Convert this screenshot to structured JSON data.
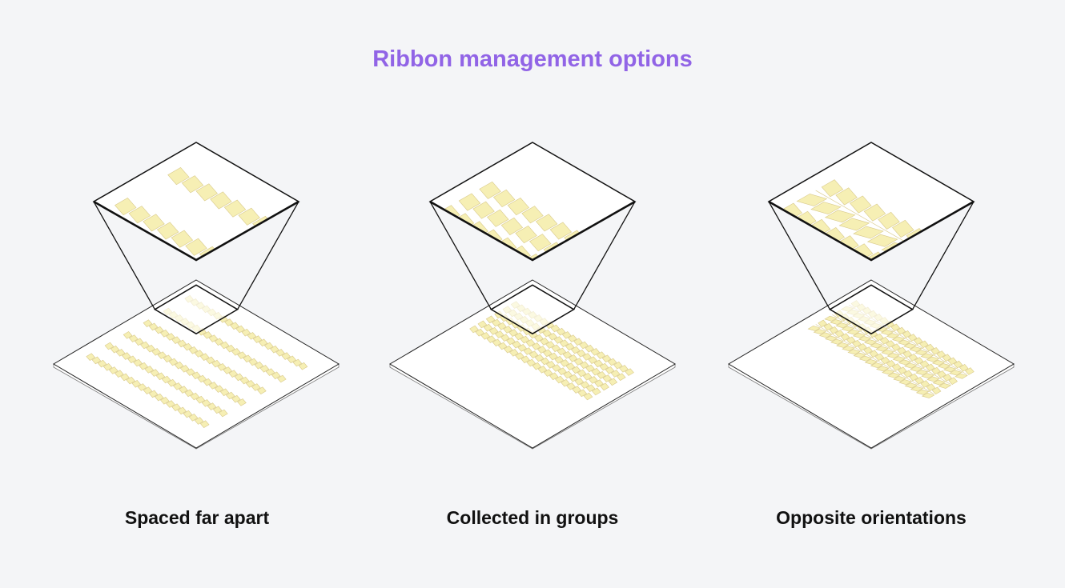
{
  "title": "Ribbon management options",
  "colors": {
    "title": "#9164e6",
    "tile_fill": "#f6efb4",
    "tile_stroke": "#d8c98a",
    "background": "#f4f5f7"
  },
  "panels": [
    {
      "label": "Spaced far apart",
      "layout": "spaced",
      "rows": [
        0.12,
        0.27,
        0.41,
        0.55,
        0.68,
        0.81
      ],
      "opposite": false
    },
    {
      "label": "Collected in groups",
      "layout": "grouped",
      "rows": [
        0.19,
        0.248,
        0.306,
        0.364,
        0.422,
        0.48
      ],
      "opposite": false
    },
    {
      "label": "Opposite orientations",
      "layout": "opposite",
      "rows": [
        0.18,
        0.238,
        0.296,
        0.354,
        0.412,
        0.47
      ],
      "opposite": true
    }
  ]
}
